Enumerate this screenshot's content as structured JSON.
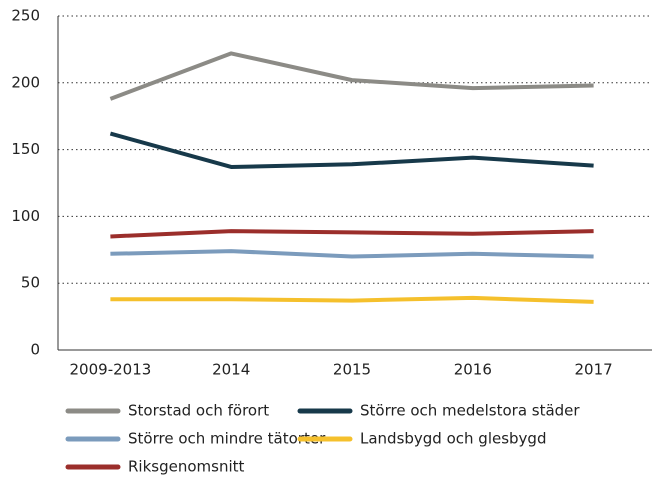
{
  "chart_data": {
    "type": "line",
    "categories": [
      "2009-2013",
      "2014",
      "2015",
      "2016",
      "2017"
    ],
    "series": [
      {
        "name": "Storstad och förort",
        "color": "#8c8b86",
        "values": [
          188,
          222,
          202,
          196,
          198
        ]
      },
      {
        "name": "Större och medelstora städer",
        "color": "#17394a",
        "values": [
          162,
          137,
          139,
          144,
          138
        ]
      },
      {
        "name": "Större och mindre tätorter",
        "color": "#7b9bbc",
        "values": [
          72,
          74,
          70,
          72,
          70
        ]
      },
      {
        "name": "Landsbygd och glesbygd",
        "color": "#f5c02c",
        "values": [
          38,
          38,
          37,
          39,
          36
        ]
      },
      {
        "name": "Riksgenomsnitt",
        "color": "#9b2e2b",
        "values": [
          85,
          89,
          88,
          87,
          89
        ]
      }
    ],
    "ylim": [
      0,
      250
    ],
    "yticks": [
      0,
      50,
      100,
      150,
      200,
      250
    ],
    "grid": true
  }
}
